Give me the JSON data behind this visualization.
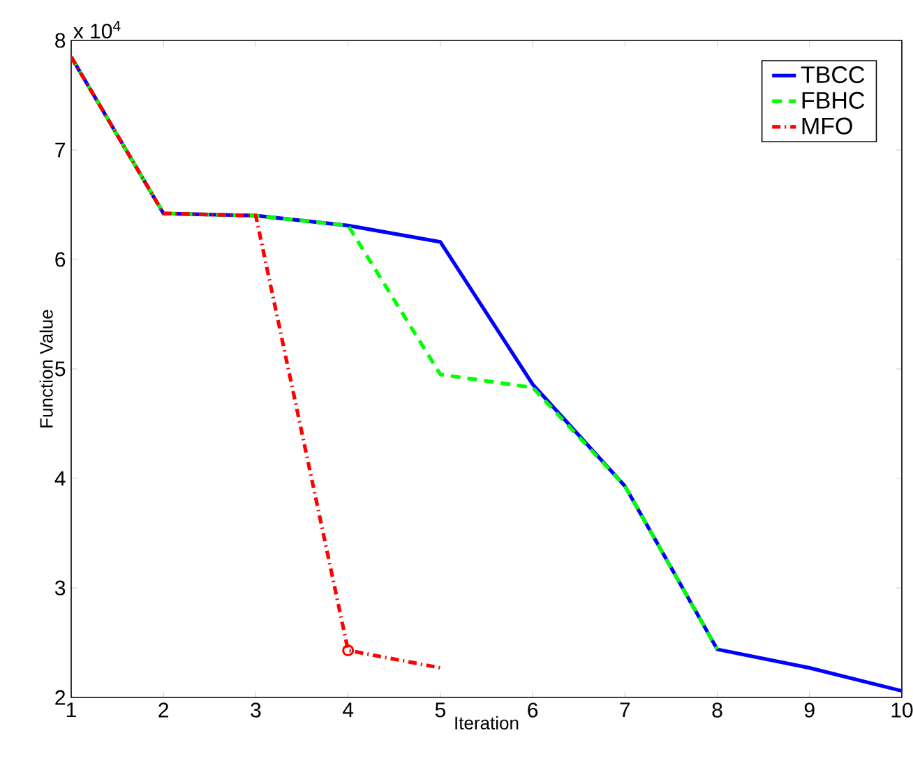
{
  "chart_data": {
    "type": "line",
    "xlabel": "Iteration",
    "ylabel": "Function Value",
    "x": [
      1,
      2,
      3,
      4,
      5,
      6,
      7,
      8,
      9,
      10
    ],
    "series": [
      {
        "name": "TBCC",
        "color": "#0000ff",
        "line_style": "solid",
        "values": [
          7.85,
          6.42,
          6.4,
          6.31,
          6.16,
          4.86,
          3.93,
          2.44,
          2.27,
          2.06
        ]
      },
      {
        "name": "FBHC",
        "color": "#00ff00",
        "line_style": "dashed",
        "values": [
          7.85,
          6.42,
          6.4,
          6.31,
          4.95,
          4.83,
          3.93,
          2.44,
          null,
          null
        ]
      },
      {
        "name": "MFO",
        "color": "#ff0000",
        "line_style": "dashdot",
        "values": [
          7.85,
          6.42,
          6.4,
          2.43,
          2.27,
          null,
          null,
          null,
          null,
          null
        ]
      },
      {
        "type": "scatter",
        "color": "#ff0000",
        "marker": "circle",
        "x": [
          4
        ],
        "values": [
          2.43
        ]
      }
    ],
    "xlim": [
      1,
      10
    ],
    "xticks": [
      1,
      2,
      3,
      4,
      5,
      6,
      7,
      8,
      9,
      10
    ],
    "ylim": [
      2,
      8
    ],
    "yticks": [
      2,
      3,
      4,
      5,
      6,
      7,
      8
    ],
    "annotations": [
      "x 10$^{4}$"
    ],
    "legend": "top right",
    "grid": false
  }
}
